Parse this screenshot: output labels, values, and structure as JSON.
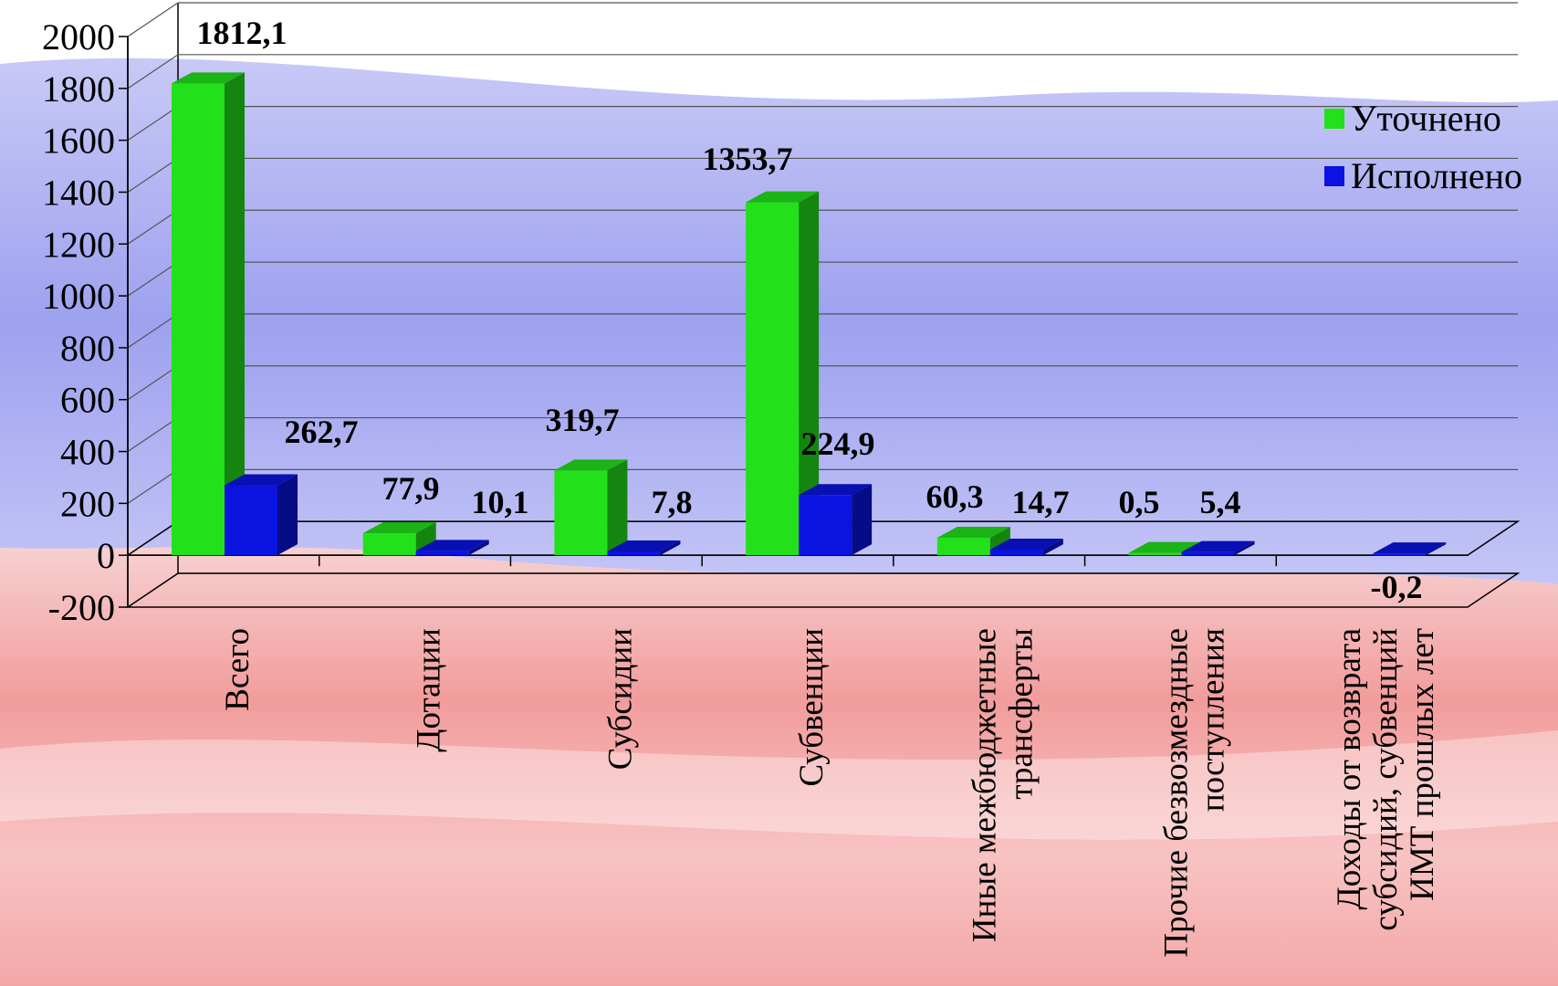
{
  "colors": {
    "series_green": "#22e01a",
    "series_blue": "#0a13e0",
    "background_blue": "#a9acf3",
    "background_red": "#f29a9a"
  },
  "chart_data": {
    "type": "bar",
    "style": "3d-clustered-column",
    "categories": [
      [
        "Всего"
      ],
      [
        "Дотации"
      ],
      [
        "Субсидии"
      ],
      [
        "Субвенции"
      ],
      [
        "Иные межбюджетные",
        "трансферты"
      ],
      [
        "Прочие безвозмездные",
        "поступления"
      ],
      [
        "Доходы от возврата",
        "субсидий, субвенций",
        "ИМТ прошлых лет"
      ]
    ],
    "series": [
      {
        "name": "Уточнено",
        "color": "#22e01a",
        "values": [
          1812.1,
          77.9,
          319.7,
          1353.7,
          60.3,
          0.5,
          null
        ],
        "labels": [
          "1812,1",
          "77,9",
          "319,7",
          "1353,7",
          "60,3",
          "0,5",
          ""
        ]
      },
      {
        "name": "Исполнено",
        "color": "#0a13e0",
        "values": [
          262.7,
          10.1,
          7.8,
          224.9,
          14.7,
          5.4,
          -0.2
        ],
        "labels": [
          "262,7",
          "10,1",
          "7,8",
          "224,9",
          "14,7",
          "5,4",
          "-0,2"
        ]
      }
    ],
    "ylim": [
      -200,
      2000
    ],
    "yticks": [
      "2000",
      "1800",
      "1600",
      "1400",
      "1200",
      "1000",
      "800",
      "600",
      "400",
      "200",
      "0",
      "-200"
    ],
    "grid": true,
    "legend_position": "right"
  }
}
